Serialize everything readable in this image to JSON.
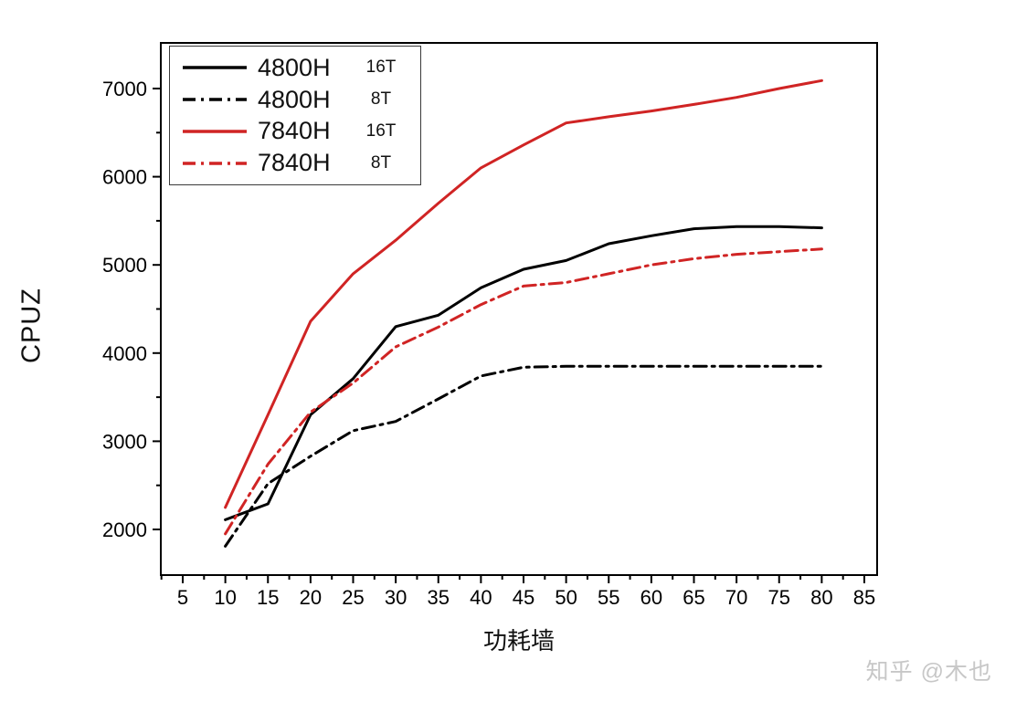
{
  "chart_data": {
    "type": "line",
    "title": "",
    "xlabel": "功耗墙",
    "ylabel": "CPUZ",
    "grid": false,
    "legend_position": "top-left",
    "xlim": [
      2.5,
      86.5
    ],
    "ylim": [
      1480,
      7520
    ],
    "x_ticks": [
      5,
      10,
      15,
      20,
      25,
      30,
      35,
      40,
      45,
      50,
      55,
      60,
      65,
      70,
      75,
      80,
      85
    ],
    "y_ticks": [
      2000,
      3000,
      4000,
      5000,
      6000,
      7000
    ],
    "x": [
      10,
      15,
      20,
      25,
      30,
      35,
      40,
      45,
      50,
      55,
      60,
      65,
      70,
      75,
      80
    ],
    "series": [
      {
        "name": "4800H",
        "threads": "16T",
        "color": "#000000",
        "style": "solid",
        "values": [
          2110,
          2290,
          3300,
          3710,
          4300,
          4430,
          4740,
          4950,
          5050,
          5240,
          5330,
          5410,
          5435,
          5435,
          5420
        ]
      },
      {
        "name": "4800H",
        "threads": "8T",
        "color": "#000000",
        "style": "dash-dot",
        "values": [
          1810,
          2520,
          2830,
          3120,
          3225,
          3480,
          3740,
          3840,
          3850,
          3850,
          3850,
          3850,
          3850,
          3850,
          3850
        ]
      },
      {
        "name": "7840H",
        "threads": "16T",
        "color": "#d02424",
        "style": "solid",
        "values": [
          2250,
          3300,
          4360,
          4900,
          5280,
          5700,
          6100,
          6360,
          6610,
          6680,
          6745,
          6820,
          6900,
          7000,
          7090
        ]
      },
      {
        "name": "7840H",
        "threads": "8T",
        "color": "#d02424",
        "style": "dash-dot",
        "values": [
          1950,
          2740,
          3330,
          3660,
          4070,
          4295,
          4550,
          4760,
          4800,
          4900,
          5000,
          5070,
          5120,
          5150,
          5180
        ]
      }
    ]
  },
  "watermark": "知乎 @木也",
  "colors": {
    "black_series": "#000000",
    "red_series": "#d02424",
    "frame": "#000000",
    "watermark": "#c7c7c7"
  }
}
